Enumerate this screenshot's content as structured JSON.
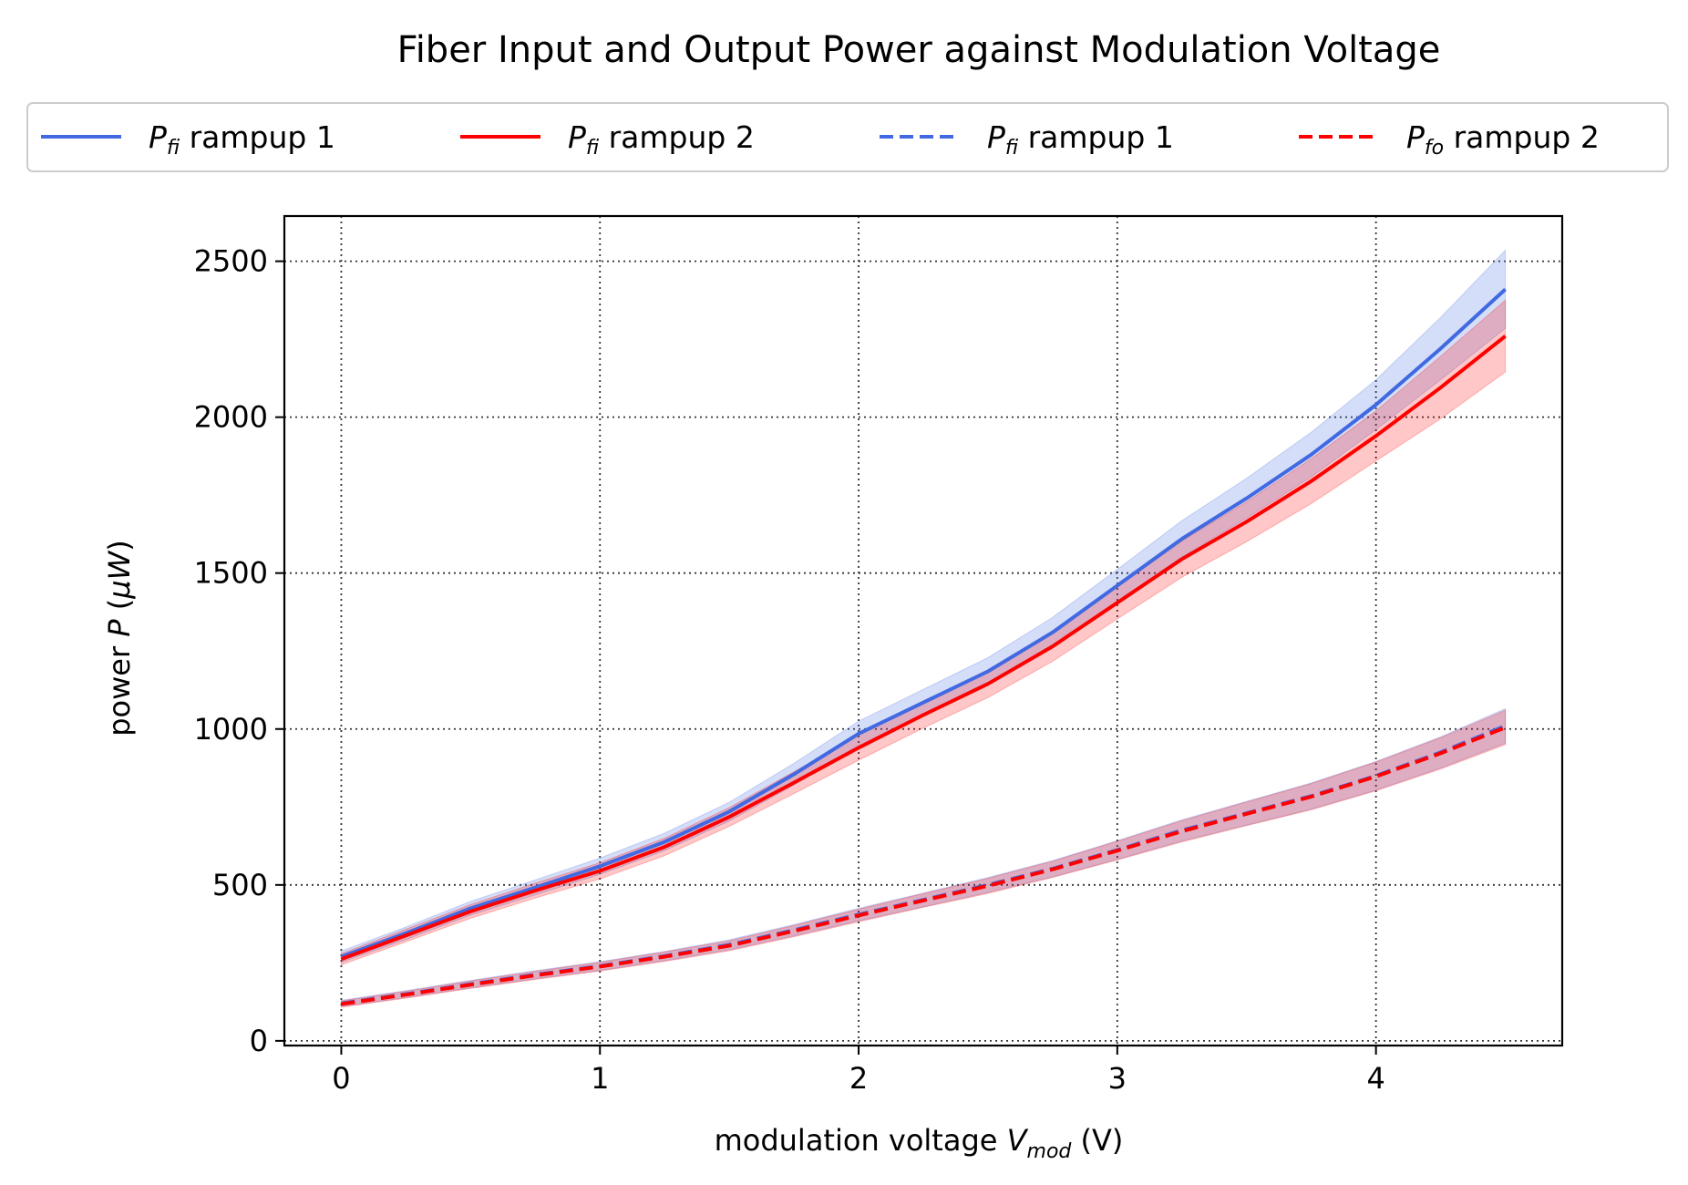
{
  "chart_data": {
    "type": "line",
    "title": "Fiber Input and Output Power against Modulation Voltage",
    "xlabel": {
      "pre": "modulation voltage ",
      "var": "V",
      "sub": "mod",
      "post": " (V)"
    },
    "ylabel": {
      "pre": "power ",
      "var": "P",
      "post": " (",
      "unit": "μW",
      "close": ")"
    },
    "xlim": [
      -0.22,
      4.72
    ],
    "ylim": [
      -15,
      2645
    ],
    "xticks": [
      0,
      1,
      2,
      3,
      4
    ],
    "yticks": [
      0,
      500,
      1000,
      1500,
      2000,
      2500
    ],
    "grid": true,
    "legend_position": "top-center, above plot",
    "x": [
      0,
      0.25,
      0.5,
      0.75,
      1.0,
      1.25,
      1.5,
      1.75,
      2.0,
      2.25,
      2.5,
      2.75,
      3.0,
      3.25,
      3.5,
      3.75,
      4.0,
      4.25,
      4.5
    ],
    "series": [
      {
        "var": "P",
        "sub": "fi",
        "suffix": " rampup 1",
        "color": "#4169e1",
        "dash": "solid",
        "values": [
          270,
          345,
          425,
          492,
          560,
          638,
          735,
          855,
          985,
          1085,
          1185,
          1310,
          1460,
          1610,
          1740,
          1880,
          2040,
          2220,
          2410
        ],
        "band": [
          18,
          20,
          22,
          24,
          26,
          28,
          30,
          35,
          40,
          42,
          44,
          48,
          52,
          58,
          64,
          72,
          80,
          100,
          125
        ]
      },
      {
        "var": "P",
        "sub": "fi",
        "suffix": " rampup 2",
        "color": "#ff0000",
        "dash": "solid",
        "values": [
          262,
          338,
          415,
          482,
          545,
          622,
          718,
          828,
          940,
          1045,
          1145,
          1265,
          1405,
          1545,
          1665,
          1795,
          1940,
          2095,
          2260
        ],
        "band": [
          18,
          20,
          22,
          24,
          26,
          28,
          30,
          35,
          40,
          42,
          44,
          48,
          52,
          58,
          64,
          72,
          80,
          100,
          115
        ]
      },
      {
        "var": "P",
        "sub": "fi",
        "suffix": " rampup 1",
        "color": "#4169e1",
        "dash": "dashed",
        "values": [
          120,
          150,
          182,
          212,
          240,
          272,
          308,
          355,
          405,
          452,
          500,
          552,
          612,
          675,
          730,
          785,
          850,
          925,
          1010
        ],
        "band": [
          10,
          11,
          12,
          13,
          14,
          15,
          16,
          18,
          20,
          22,
          24,
          26,
          30,
          34,
          38,
          42,
          46,
          50,
          55
        ]
      },
      {
        "var": "P",
        "sub": "fo",
        "suffix": " rampup 2",
        "color": "#ff0000",
        "dash": "dashed",
        "values": [
          118,
          148,
          180,
          210,
          238,
          270,
          305,
          352,
          402,
          450,
          497,
          550,
          610,
          672,
          728,
          783,
          848,
          922,
          1005
        ],
        "band": [
          10,
          11,
          12,
          13,
          14,
          15,
          16,
          18,
          20,
          22,
          24,
          26,
          30,
          34,
          38,
          42,
          46,
          50,
          55
        ]
      }
    ]
  }
}
